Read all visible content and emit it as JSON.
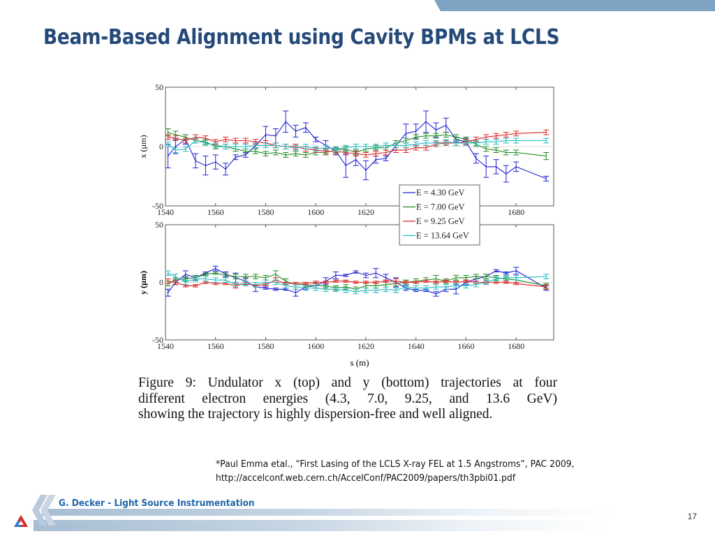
{
  "slide": {
    "title": "Beam-Based Alignment using Cavity BPMs at LCLS",
    "caption_lines": [
      "Figure 9:  Undulator x (top) and y (bottom) trajectories at four",
      "different electron energies (4.3, 7.0, 9.25, and 13.6 GeV)",
      "showing the trajectory is highly dispersion-free and well aligned."
    ],
    "reference_line1": "*Paul Emma etal., “First Lasing of the LCLS X-ray FEL at 1.5 Angstroms”, PAC 2009,",
    "reference_line2": "http://accelconf.web.cern.ch/AccelConf/PAC2009/papers/th3pbi01.pdf",
    "footer_text": "G. Decker - Light Source Instrumentation",
    "page_number": "17",
    "colors": {
      "title": "#254a7a",
      "footer_text": "#1f64a8",
      "header_bar": "#7ea3c2"
    }
  },
  "chart_data": [
    {
      "type": "line",
      "panel": "top",
      "title": "",
      "xlabel": "",
      "ylabel": "x (µm)",
      "xlim": [
        1540,
        1695
      ],
      "ylim": [
        -50,
        50
      ],
      "xticks": [
        1540,
        1560,
        1580,
        1600,
        1620,
        1640,
        1660,
        1680
      ],
      "xtick_labels": [
        "1540",
        "1560",
        "1580",
        "1600",
        "1620",
        "1640",
        "1660",
        "1680"
      ],
      "yticks": [
        -50,
        0,
        50
      ],
      "ytick_labels": [
        "-50",
        "0",
        "50"
      ],
      "zero_reference_line": true,
      "legend": {
        "placement": "lower-center",
        "entries": [
          "E = 4.30 GeV",
          "E = 7.00 GeV",
          "E = 9.25 GeV",
          "E = 13.64 GeV"
        ]
      },
      "x": [
        1541,
        1544,
        1548,
        1552,
        1556,
        1560,
        1564,
        1568,
        1572,
        1576,
        1580,
        1584,
        1588,
        1592,
        1596,
        1600,
        1604,
        1608,
        1612,
        1616,
        1620,
        1624,
        1628,
        1632,
        1636,
        1640,
        1644,
        1648,
        1652,
        1656,
        1660,
        1664,
        1668,
        1672,
        1676,
        1680,
        1692
      ],
      "series": [
        {
          "name": "E = 4.30 GeV",
          "color": "#1f1fd6",
          "values": [
            -8,
            0,
            6,
            -12,
            -16,
            -13,
            -19,
            -9,
            -7,
            1,
            10,
            9,
            21,
            13,
            16,
            6,
            1,
            -4,
            -16,
            -11,
            -20,
            -11,
            -10,
            1,
            11,
            13,
            21,
            14,
            18,
            6,
            4,
            -10,
            -17,
            -17,
            -23,
            -17,
            -27
          ],
          "errors": [
            10,
            6,
            4,
            6,
            8,
            6,
            5,
            2,
            2,
            2,
            7,
            6,
            9,
            5,
            4,
            2,
            4,
            3,
            10,
            5,
            8,
            3,
            2,
            4,
            8,
            6,
            9,
            6,
            6,
            2,
            3,
            4,
            9,
            6,
            7,
            4,
            2
          ]
        },
        {
          "name": "E = 7.00 GeV",
          "color": "#1e8a1e",
          "values": [
            12,
            10,
            8,
            5,
            4,
            0,
            0,
            -2,
            -4,
            -4,
            -6,
            -5,
            -7,
            -6,
            -7,
            -5,
            -5,
            -3,
            -2,
            -5,
            -2,
            -1,
            -1,
            3,
            5,
            8,
            9,
            9,
            10,
            8,
            6,
            2,
            -2,
            -3,
            -5,
            -5,
            -8
          ],
          "errors": [
            3,
            3,
            2,
            2,
            2,
            2,
            2,
            2,
            2,
            2,
            2,
            2,
            2,
            2,
            2,
            2,
            2,
            2,
            2,
            2,
            2,
            2,
            2,
            2,
            2,
            2,
            2,
            2,
            2,
            2,
            2,
            2,
            2,
            2,
            2,
            2,
            3
          ]
        },
        {
          "name": "E = 9.25 GeV",
          "color": "#e02020",
          "values": [
            8,
            7,
            5,
            8,
            7,
            4,
            6,
            5,
            5,
            4,
            3,
            1,
            0,
            0,
            -2,
            -3,
            -4,
            -4,
            -5,
            -6,
            -7,
            -6,
            -5,
            -3,
            -3,
            -1,
            -1,
            2,
            3,
            3,
            4,
            6,
            8,
            9,
            10,
            11,
            12
          ],
          "errors": [
            2,
            2,
            2,
            2,
            2,
            2,
            2,
            2,
            2,
            2,
            2,
            2,
            2,
            2,
            2,
            2,
            2,
            2,
            2,
            2,
            2,
            2,
            2,
            2,
            2,
            2,
            2,
            2,
            2,
            2,
            2,
            2,
            2,
            2,
            2,
            2,
            2
          ]
        },
        {
          "name": "E = 13.64 GeV",
          "color": "#20b8c0",
          "values": [
            2,
            -3,
            -2,
            5,
            3,
            1,
            0,
            0,
            0,
            1,
            1,
            1,
            0,
            -1,
            0,
            -2,
            -1,
            -2,
            -1,
            0,
            0,
            0,
            1,
            1,
            1,
            2,
            3,
            3,
            4,
            3,
            3,
            3,
            4,
            4,
            5,
            5,
            5
          ],
          "errors": [
            2,
            2,
            2,
            2,
            2,
            2,
            2,
            2,
            2,
            2,
            2,
            2,
            2,
            2,
            2,
            2,
            2,
            2,
            2,
            2,
            2,
            2,
            2,
            2,
            2,
            2,
            2,
            2,
            2,
            2,
            2,
            2,
            2,
            2,
            2,
            2,
            2
          ]
        }
      ]
    },
    {
      "type": "line",
      "panel": "bottom",
      "title": "",
      "xlabel": "s (m)",
      "ylabel": "y (µm)",
      "xlim": [
        1540,
        1695
      ],
      "ylim": [
        -50,
        50
      ],
      "xticks": [
        1540,
        1560,
        1580,
        1600,
        1620,
        1640,
        1660,
        1680
      ],
      "xtick_labels": [
        "1540",
        "1560",
        "1580",
        "1600",
        "1620",
        "1640",
        "1660",
        "1680"
      ],
      "yticks": [
        -50,
        0,
        50
      ],
      "ytick_labels": [
        "-50",
        "0",
        "50"
      ],
      "zero_reference_line": true,
      "x": [
        1541,
        1544,
        1548,
        1552,
        1556,
        1560,
        1564,
        1568,
        1572,
        1576,
        1580,
        1584,
        1588,
        1592,
        1596,
        1600,
        1604,
        1608,
        1612,
        1616,
        1620,
        1624,
        1628,
        1632,
        1636,
        1640,
        1644,
        1648,
        1652,
        1656,
        1660,
        1664,
        1668,
        1672,
        1676,
        1680,
        1692
      ],
      "series": [
        {
          "name": "E = 4.30 GeV",
          "color": "#1f1fd6",
          "values": [
            -9,
            0,
            7,
            4,
            8,
            12,
            7,
            4,
            1,
            -4,
            -5,
            -6,
            -6,
            -9,
            -4,
            -3,
            1,
            6,
            6,
            9,
            6,
            8,
            4,
            0,
            -5,
            -7,
            -7,
            -10,
            -6,
            -6,
            0,
            3,
            5,
            10,
            8,
            10,
            -5
          ],
          "errors": [
            3,
            2,
            3,
            2,
            1,
            2,
            2,
            4,
            3,
            4,
            1,
            1,
            1,
            3,
            2,
            2,
            3,
            3,
            1,
            1,
            2,
            4,
            3,
            4,
            2,
            1,
            1,
            2,
            2,
            4,
            2,
            2,
            2,
            1,
            1,
            3,
            2
          ]
        },
        {
          "name": "E = 7.00 GeV",
          "color": "#1e8a1e",
          "values": [
            -1,
            2,
            3,
            4,
            7,
            8,
            6,
            5,
            5,
            5,
            4,
            7,
            1,
            -2,
            -2,
            -3,
            -3,
            -5,
            -4,
            -6,
            -3,
            -3,
            -2,
            -1,
            0,
            1,
            2,
            3,
            1,
            4,
            4,
            5,
            5,
            4,
            3,
            2,
            -3
          ],
          "errors": [
            2,
            2,
            2,
            2,
            1,
            1,
            2,
            2,
            2,
            2,
            2,
            3,
            2,
            2,
            2,
            2,
            2,
            2,
            2,
            2,
            2,
            2,
            2,
            2,
            2,
            2,
            2,
            3,
            2,
            2,
            2,
            2,
            2,
            2,
            2,
            2,
            2
          ]
        },
        {
          "name": "E = 9.25 GeV",
          "color": "#e02020",
          "values": [
            1,
            0,
            -3,
            -3,
            0,
            -1,
            -1,
            -3,
            -1,
            -3,
            -2,
            2,
            -1,
            -1,
            -1,
            0,
            0,
            1,
            1,
            0,
            0,
            0,
            1,
            1,
            0,
            0,
            1,
            0,
            1,
            0,
            1,
            0,
            0,
            0,
            0,
            -1,
            -4
          ],
          "errors": [
            2,
            2,
            1,
            1,
            1,
            1,
            1,
            2,
            1,
            1,
            1,
            2,
            1,
            1,
            1,
            1,
            1,
            1,
            1,
            1,
            1,
            1,
            1,
            2,
            1,
            1,
            1,
            1,
            1,
            1,
            1,
            1,
            1,
            1,
            1,
            1,
            2
          ]
        },
        {
          "name": "E = 13.64 GeV",
          "color": "#20b8c0",
          "values": [
            8,
            5,
            0,
            3,
            3,
            2,
            2,
            -2,
            -1,
            -2,
            0,
            0,
            -3,
            -4,
            -5,
            -5,
            -6,
            -6,
            -7,
            -8,
            -7,
            -7,
            -6,
            -7,
            -4,
            -5,
            -5,
            -4,
            -4,
            -3,
            -3,
            -2,
            0,
            3,
            4,
            4,
            5
          ],
          "errors": [
            2,
            2,
            2,
            2,
            2,
            2,
            2,
            2,
            2,
            2,
            2,
            2,
            2,
            2,
            2,
            2,
            2,
            2,
            2,
            2,
            2,
            2,
            2,
            2,
            2,
            2,
            2,
            2,
            2,
            2,
            2,
            2,
            2,
            2,
            2,
            2,
            2
          ]
        }
      ]
    }
  ]
}
